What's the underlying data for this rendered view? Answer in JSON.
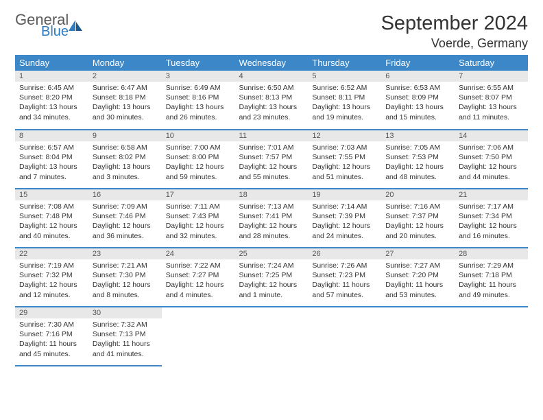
{
  "logo": {
    "general": "General",
    "blue": "Blue"
  },
  "title": "September 2024",
  "location": "Voerde, Germany",
  "day_headers": [
    "Sunday",
    "Monday",
    "Tuesday",
    "Wednesday",
    "Thursday",
    "Friday",
    "Saturday"
  ],
  "colors": {
    "header_bg": "#3b87c8",
    "header_fg": "#ffffff",
    "daynum_bg": "#e8e8e8",
    "border": "#3b87c8",
    "logo_gray": "#5a5a5a",
    "logo_blue": "#2f7bbf"
  },
  "weeks": [
    [
      {
        "n": "1",
        "sr": "Sunrise: 6:45 AM",
        "ss": "Sunset: 8:20 PM",
        "dl1": "Daylight: 13 hours",
        "dl2": "and 34 minutes."
      },
      {
        "n": "2",
        "sr": "Sunrise: 6:47 AM",
        "ss": "Sunset: 8:18 PM",
        "dl1": "Daylight: 13 hours",
        "dl2": "and 30 minutes."
      },
      {
        "n": "3",
        "sr": "Sunrise: 6:49 AM",
        "ss": "Sunset: 8:16 PM",
        "dl1": "Daylight: 13 hours",
        "dl2": "and 26 minutes."
      },
      {
        "n": "4",
        "sr": "Sunrise: 6:50 AM",
        "ss": "Sunset: 8:13 PM",
        "dl1": "Daylight: 13 hours",
        "dl2": "and 23 minutes."
      },
      {
        "n": "5",
        "sr": "Sunrise: 6:52 AM",
        "ss": "Sunset: 8:11 PM",
        "dl1": "Daylight: 13 hours",
        "dl2": "and 19 minutes."
      },
      {
        "n": "6",
        "sr": "Sunrise: 6:53 AM",
        "ss": "Sunset: 8:09 PM",
        "dl1": "Daylight: 13 hours",
        "dl2": "and 15 minutes."
      },
      {
        "n": "7",
        "sr": "Sunrise: 6:55 AM",
        "ss": "Sunset: 8:07 PM",
        "dl1": "Daylight: 13 hours",
        "dl2": "and 11 minutes."
      }
    ],
    [
      {
        "n": "8",
        "sr": "Sunrise: 6:57 AM",
        "ss": "Sunset: 8:04 PM",
        "dl1": "Daylight: 13 hours",
        "dl2": "and 7 minutes."
      },
      {
        "n": "9",
        "sr": "Sunrise: 6:58 AM",
        "ss": "Sunset: 8:02 PM",
        "dl1": "Daylight: 13 hours",
        "dl2": "and 3 minutes."
      },
      {
        "n": "10",
        "sr": "Sunrise: 7:00 AM",
        "ss": "Sunset: 8:00 PM",
        "dl1": "Daylight: 12 hours",
        "dl2": "and 59 minutes."
      },
      {
        "n": "11",
        "sr": "Sunrise: 7:01 AM",
        "ss": "Sunset: 7:57 PM",
        "dl1": "Daylight: 12 hours",
        "dl2": "and 55 minutes."
      },
      {
        "n": "12",
        "sr": "Sunrise: 7:03 AM",
        "ss": "Sunset: 7:55 PM",
        "dl1": "Daylight: 12 hours",
        "dl2": "and 51 minutes."
      },
      {
        "n": "13",
        "sr": "Sunrise: 7:05 AM",
        "ss": "Sunset: 7:53 PM",
        "dl1": "Daylight: 12 hours",
        "dl2": "and 48 minutes."
      },
      {
        "n": "14",
        "sr": "Sunrise: 7:06 AM",
        "ss": "Sunset: 7:50 PM",
        "dl1": "Daylight: 12 hours",
        "dl2": "and 44 minutes."
      }
    ],
    [
      {
        "n": "15",
        "sr": "Sunrise: 7:08 AM",
        "ss": "Sunset: 7:48 PM",
        "dl1": "Daylight: 12 hours",
        "dl2": "and 40 minutes."
      },
      {
        "n": "16",
        "sr": "Sunrise: 7:09 AM",
        "ss": "Sunset: 7:46 PM",
        "dl1": "Daylight: 12 hours",
        "dl2": "and 36 minutes."
      },
      {
        "n": "17",
        "sr": "Sunrise: 7:11 AM",
        "ss": "Sunset: 7:43 PM",
        "dl1": "Daylight: 12 hours",
        "dl2": "and 32 minutes."
      },
      {
        "n": "18",
        "sr": "Sunrise: 7:13 AM",
        "ss": "Sunset: 7:41 PM",
        "dl1": "Daylight: 12 hours",
        "dl2": "and 28 minutes."
      },
      {
        "n": "19",
        "sr": "Sunrise: 7:14 AM",
        "ss": "Sunset: 7:39 PM",
        "dl1": "Daylight: 12 hours",
        "dl2": "and 24 minutes."
      },
      {
        "n": "20",
        "sr": "Sunrise: 7:16 AM",
        "ss": "Sunset: 7:37 PM",
        "dl1": "Daylight: 12 hours",
        "dl2": "and 20 minutes."
      },
      {
        "n": "21",
        "sr": "Sunrise: 7:17 AM",
        "ss": "Sunset: 7:34 PM",
        "dl1": "Daylight: 12 hours",
        "dl2": "and 16 minutes."
      }
    ],
    [
      {
        "n": "22",
        "sr": "Sunrise: 7:19 AM",
        "ss": "Sunset: 7:32 PM",
        "dl1": "Daylight: 12 hours",
        "dl2": "and 12 minutes."
      },
      {
        "n": "23",
        "sr": "Sunrise: 7:21 AM",
        "ss": "Sunset: 7:30 PM",
        "dl1": "Daylight: 12 hours",
        "dl2": "and 8 minutes."
      },
      {
        "n": "24",
        "sr": "Sunrise: 7:22 AM",
        "ss": "Sunset: 7:27 PM",
        "dl1": "Daylight: 12 hours",
        "dl2": "and 4 minutes."
      },
      {
        "n": "25",
        "sr": "Sunrise: 7:24 AM",
        "ss": "Sunset: 7:25 PM",
        "dl1": "Daylight: 12 hours",
        "dl2": "and 1 minute."
      },
      {
        "n": "26",
        "sr": "Sunrise: 7:26 AM",
        "ss": "Sunset: 7:23 PM",
        "dl1": "Daylight: 11 hours",
        "dl2": "and 57 minutes."
      },
      {
        "n": "27",
        "sr": "Sunrise: 7:27 AM",
        "ss": "Sunset: 7:20 PM",
        "dl1": "Daylight: 11 hours",
        "dl2": "and 53 minutes."
      },
      {
        "n": "28",
        "sr": "Sunrise: 7:29 AM",
        "ss": "Sunset: 7:18 PM",
        "dl1": "Daylight: 11 hours",
        "dl2": "and 49 minutes."
      }
    ],
    [
      {
        "n": "29",
        "sr": "Sunrise: 7:30 AM",
        "ss": "Sunset: 7:16 PM",
        "dl1": "Daylight: 11 hours",
        "dl2": "and 45 minutes."
      },
      {
        "n": "30",
        "sr": "Sunrise: 7:32 AM",
        "ss": "Sunset: 7:13 PM",
        "dl1": "Daylight: 11 hours",
        "dl2": "and 41 minutes."
      },
      null,
      null,
      null,
      null,
      null
    ]
  ]
}
